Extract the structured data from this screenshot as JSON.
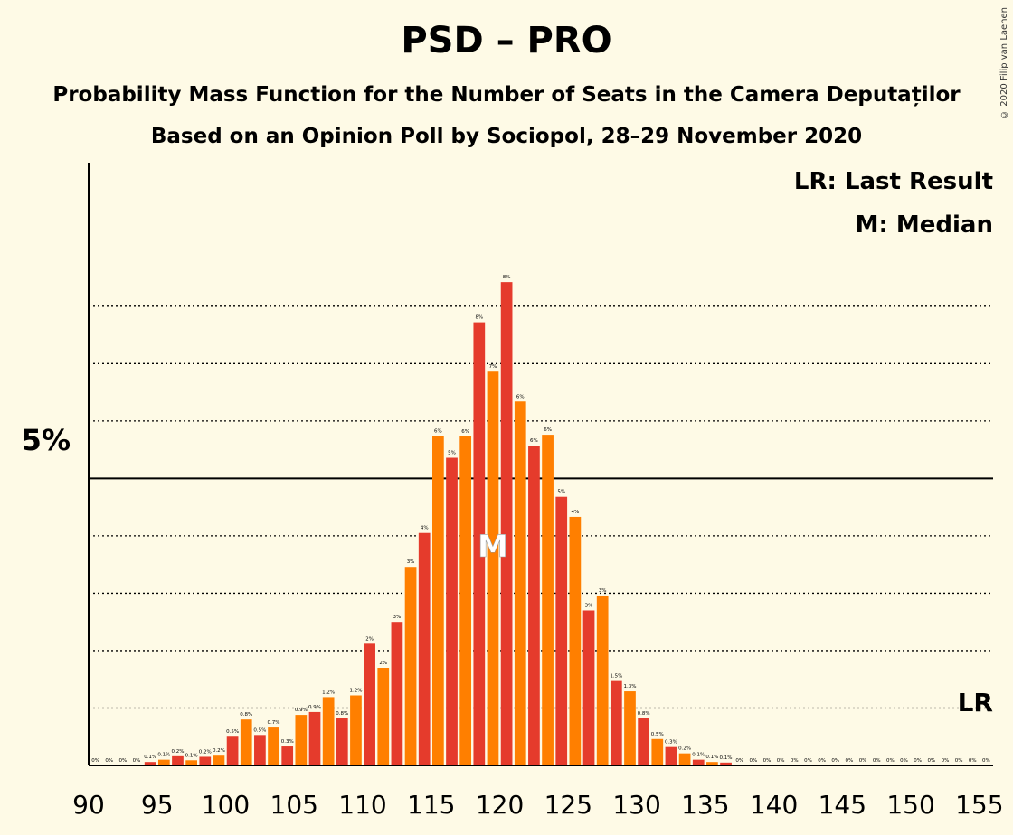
{
  "title": "PSD – PRO",
  "subtitle1": "Probability Mass Function for the Number of Seats in the Camera Deputaților",
  "subtitle2": "Based on an Opinion Poll by Sociopol, 28–29 November 2020",
  "copyright": "© 2020 Filip van Laenen",
  "legend": {
    "last_result": "LR: Last Result",
    "median": "M: Median"
  },
  "markers": {
    "median_label": "M",
    "last_result_label": "LR"
  },
  "colors": {
    "background": "#fefae6",
    "bar_even": "#e53b2c",
    "bar_odd": "#ff7f00"
  },
  "chart_data": {
    "type": "bar",
    "x_start": 90,
    "x_end": 155,
    "xticks": [
      90,
      95,
      100,
      105,
      110,
      115,
      120,
      125,
      130,
      135,
      140,
      145,
      150,
      155
    ],
    "y_range": [
      0,
      10.5
    ],
    "y_major_tick": {
      "value": 5,
      "label": "5%"
    },
    "y_dotted_gridlines": [
      1,
      2,
      3,
      4,
      6,
      7,
      8
    ],
    "median_seat": 119,
    "last_result_seat": 155,
    "seats": [
      90,
      91,
      92,
      93,
      94,
      95,
      96,
      97,
      98,
      99,
      100,
      101,
      102,
      103,
      104,
      105,
      106,
      107,
      108,
      109,
      110,
      111,
      112,
      113,
      114,
      115,
      116,
      117,
      118,
      119,
      120,
      121,
      122,
      123,
      124,
      125,
      126,
      127,
      128,
      129,
      130,
      131,
      132,
      133,
      134,
      135,
      136,
      137,
      138,
      139,
      140,
      141,
      142,
      143,
      144,
      145,
      146,
      147,
      148,
      149,
      150,
      151,
      152,
      153,
      154,
      155
    ],
    "values": [
      0,
      0,
      0,
      0,
      0.06,
      0.1,
      0.16,
      0.09,
      0.15,
      0.17,
      0.5,
      0.8,
      0.53,
      0.66,
      0.33,
      0.88,
      0.93,
      1.19,
      0.82,
      1.22,
      2.12,
      1.7,
      2.5,
      3.46,
      4.05,
      5.74,
      5.36,
      5.73,
      7.72,
      6.86,
      8.42,
      6.34,
      5.57,
      5.76,
      4.68,
      4.33,
      2.7,
      2.96,
      1.47,
      1.29,
      0.82,
      0.46,
      0.32,
      0.21,
      0.1,
      0.06,
      0.05,
      0,
      0,
      0,
      0,
      0,
      0,
      0,
      0,
      0,
      0,
      0,
      0,
      0,
      0,
      0,
      0,
      0,
      0,
      0
    ],
    "labels": [
      "0%",
      "0%",
      "0%",
      "0%",
      "0.1%",
      "0.1%",
      "0.2%",
      "0.1%",
      "0.2%",
      "0.2%",
      "0.5%",
      "0.8%",
      "0.5%",
      "0.7%",
      "0.3%",
      "0.9%",
      "0.9%",
      "1.2%",
      "0.8%",
      "1.2%",
      "2%",
      "2%",
      "3%",
      "3%",
      "4%",
      "6%",
      "5%",
      "6%",
      "8%",
      "7%",
      "8%",
      "6%",
      "6%",
      "6%",
      "5%",
      "4%",
      "3%",
      "3%",
      "1.5%",
      "1.3%",
      "0.8%",
      "0.5%",
      "0.3%",
      "0.2%",
      "0.1%",
      "0.1%",
      "0.1%",
      "0%",
      "0%",
      "0%",
      "0%",
      "0%",
      "0%",
      "0%",
      "0%",
      "0%",
      "0%",
      "0%",
      "0%",
      "0%",
      "0%",
      "0%",
      "0%",
      "0%",
      "0%",
      "0%"
    ]
  }
}
